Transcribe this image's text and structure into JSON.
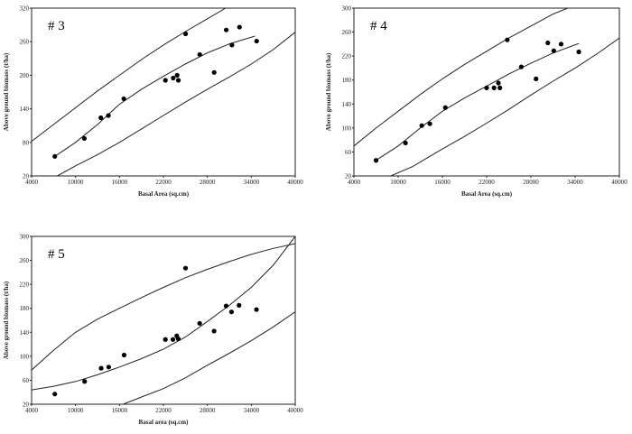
{
  "chart_data": [
    {
      "type": "scatter",
      "title": "# 3",
      "xlabel": "Basal Area (sq.cm)",
      "ylabel": "Above ground biomass (t/ha)",
      "xlim": [
        4000,
        40000
      ],
      "ylim": [
        20,
        320
      ],
      "xticks": [
        4000,
        10000,
        16000,
        22000,
        28000,
        34000,
        40000
      ],
      "yticks": [
        20,
        80,
        140,
        200,
        260,
        320
      ],
      "grid": false,
      "points": [
        [
          7170,
          55
        ],
        [
          11200,
          87
        ],
        [
          13460,
          124
        ],
        [
          14490,
          128
        ],
        [
          16590,
          158
        ],
        [
          22270,
          191
        ],
        [
          23340,
          195
        ],
        [
          23870,
          200
        ],
        [
          24040,
          191
        ],
        [
          25030,
          274
        ],
        [
          26960,
          237
        ],
        [
          28930,
          205
        ],
        [
          30580,
          281
        ],
        [
          31360,
          254
        ],
        [
          32390,
          286
        ],
        [
          34730,
          261
        ]
      ],
      "lines": [
        {
          "name": "fit",
          "points": [
            [
              7170,
              55
            ],
            [
              10000,
              80
            ],
            [
              13000,
              112
            ],
            [
              16000,
              148
            ],
            [
              19000,
              175
            ],
            [
              22000,
              198
            ],
            [
              25000,
              220
            ],
            [
              28000,
              240
            ],
            [
              31000,
              256
            ],
            [
              34500,
              270
            ]
          ]
        },
        {
          "name": "upper",
          "points": [
            [
              4000,
              82
            ],
            [
              7000,
              112
            ],
            [
              10000,
              142
            ],
            [
              13000,
              172
            ],
            [
              16000,
              200
            ],
            [
              19000,
              228
            ],
            [
              22000,
              254
            ],
            [
              25000,
              278
            ],
            [
              28000,
              301
            ],
            [
              30500,
              320
            ]
          ]
        },
        {
          "name": "lower",
          "points": [
            [
              7500,
              20
            ],
            [
              10000,
              38
            ],
            [
              13000,
              58
            ],
            [
              16000,
              80
            ],
            [
              19000,
              104
            ],
            [
              22000,
              128
            ],
            [
              25000,
              152
            ],
            [
              28000,
              175
            ],
            [
              31000,
              197
            ],
            [
              34000,
              220
            ],
            [
              37000,
              246
            ],
            [
              40000,
              277
            ]
          ]
        }
      ]
    },
    {
      "type": "scatter",
      "title": "# 4",
      "xlabel": "Basal Area (sq.cm)",
      "ylabel": "Above ground biomass (t/ha)",
      "xlim": [
        4000,
        40000
      ],
      "ylim": [
        20,
        300
      ],
      "xticks": [
        4000,
        10000,
        16000,
        22000,
        28000,
        34000,
        40000
      ],
      "yticks": [
        20,
        60,
        100,
        140,
        180,
        220,
        260,
        300
      ],
      "grid": false,
      "points": [
        [
          7000,
          46
        ],
        [
          11000,
          75
        ],
        [
          13200,
          104
        ],
        [
          14300,
          107
        ],
        [
          16400,
          134
        ],
        [
          22000,
          167
        ],
        [
          23000,
          167
        ],
        [
          23600,
          175
        ],
        [
          23800,
          167
        ],
        [
          24800,
          247
        ],
        [
          26700,
          202
        ],
        [
          28700,
          182
        ],
        [
          30300,
          242
        ],
        [
          31100,
          229
        ],
        [
          32100,
          240
        ],
        [
          34500,
          227
        ]
      ],
      "lines": [
        {
          "name": "fit",
          "points": [
            [
              7000,
              46
            ],
            [
              10000,
              70
            ],
            [
              13000,
              100
            ],
            [
              16000,
              128
            ],
            [
              19000,
              150
            ],
            [
              22000,
              170
            ],
            [
              25000,
              190
            ],
            [
              28000,
              208
            ],
            [
              31000,
              225
            ],
            [
              34500,
              241
            ]
          ]
        },
        {
          "name": "upper",
          "points": [
            [
              4000,
              70
            ],
            [
              7000,
              100
            ],
            [
              10000,
              128
            ],
            [
              13000,
              156
            ],
            [
              16000,
              182
            ],
            [
              19000,
              206
            ],
            [
              22000,
              228
            ],
            [
              25000,
              250
            ],
            [
              28000,
              270
            ],
            [
              31000,
              290
            ],
            [
              33000,
              300
            ]
          ]
        },
        {
          "name": "lower",
          "points": [
            [
              9000,
              20
            ],
            [
              12000,
              36
            ],
            [
              16000,
              65
            ],
            [
              19000,
              86
            ],
            [
              22000,
              108
            ],
            [
              25000,
              131
            ],
            [
              28000,
              155
            ],
            [
              31000,
              178
            ],
            [
              34000,
              200
            ],
            [
              37000,
              224
            ],
            [
              40000,
              250
            ]
          ]
        }
      ]
    },
    {
      "type": "scatter",
      "title": "# 5",
      "xlabel": "Basal area (sq.cm)",
      "ylabel": "Above ground biomass (t/ha)",
      "xlim": [
        4000,
        40000
      ],
      "ylim": [
        20,
        300
      ],
      "xticks": [
        4000,
        10000,
        16000,
        22000,
        28000,
        34000,
        40000
      ],
      "yticks": [
        20,
        60,
        100,
        140,
        180,
        220,
        260,
        300
      ],
      "grid": false,
      "points": [
        [
          7170,
          37
        ],
        [
          11240,
          58
        ],
        [
          13500,
          80
        ],
        [
          14530,
          82
        ],
        [
          16630,
          102
        ],
        [
          22270,
          128
        ],
        [
          23300,
          128
        ],
        [
          23820,
          134
        ],
        [
          24030,
          129
        ],
        [
          25020,
          247
        ],
        [
          26950,
          155
        ],
        [
          28920,
          142
        ],
        [
          30560,
          184
        ],
        [
          31300,
          174
        ],
        [
          32330,
          185
        ],
        [
          34710,
          178
        ]
      ],
      "lines": [
        {
          "name": "fit",
          "points": [
            [
              4000,
              44
            ],
            [
              7000,
              50
            ],
            [
              10000,
              58
            ],
            [
              13000,
              69
            ],
            [
              16000,
              82
            ],
            [
              19000,
              96
            ],
            [
              22000,
              112
            ],
            [
              25000,
              132
            ],
            [
              28000,
              158
            ],
            [
              31000,
              185
            ],
            [
              34000,
              215
            ],
            [
              37000,
              252
            ],
            [
              40000,
              300
            ]
          ]
        },
        {
          "name": "upper",
          "points": [
            [
              4000,
              77
            ],
            [
              7000,
              110
            ],
            [
              10000,
              140
            ],
            [
              13000,
              162
            ],
            [
              16000,
              180
            ],
            [
              19000,
              198
            ],
            [
              22000,
              215
            ],
            [
              25000,
              231
            ],
            [
              28000,
              245
            ],
            [
              31000,
              258
            ],
            [
              34000,
              270
            ],
            [
              37000,
              280
            ],
            [
              40000,
              288
            ]
          ]
        },
        {
          "name": "lower",
          "points": [
            [
              16500,
              20
            ],
            [
              19000,
              32
            ],
            [
              22000,
              46
            ],
            [
              25000,
              64
            ],
            [
              28000,
              85
            ],
            [
              31000,
              105
            ],
            [
              34000,
              126
            ],
            [
              37000,
              149
            ],
            [
              40000,
              174
            ]
          ]
        }
      ]
    }
  ]
}
